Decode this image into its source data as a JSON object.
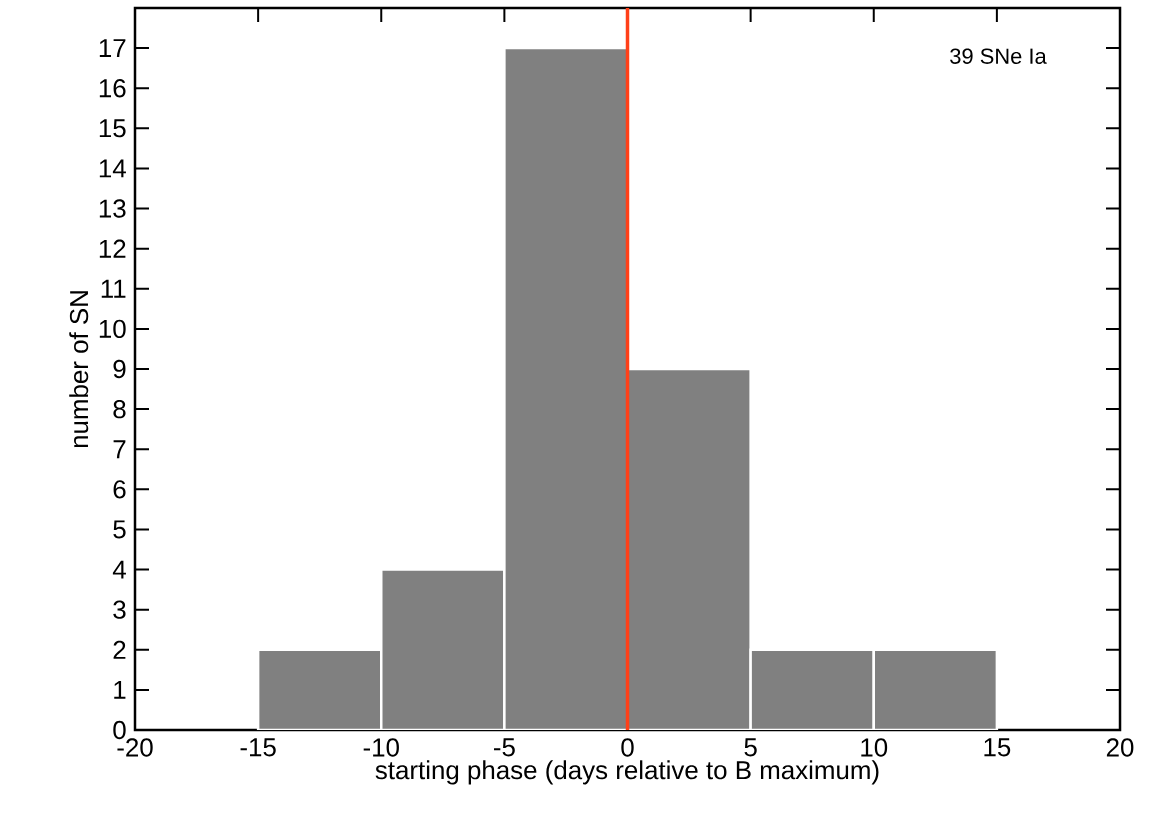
{
  "chart_data": {
    "type": "histogram",
    "xlabel": "starting phase (days relative to B maximum)",
    "ylabel": "number of SN",
    "bins": [
      -15,
      -10,
      -5,
      0,
      5,
      10,
      15
    ],
    "values": [
      2,
      4,
      17,
      9,
      2,
      2
    ],
    "color": "#808080",
    "xlim": [
      -20,
      20
    ],
    "xticks": [
      -20,
      -15,
      -10,
      -5,
      0,
      5,
      10,
      15,
      20
    ],
    "ylim": [
      0,
      18
    ],
    "yticks": [
      0,
      1,
      2,
      3,
      4,
      5,
      6,
      7,
      8,
      9,
      10,
      11,
      12,
      13,
      14,
      15,
      16,
      17
    ],
    "ref_lines": [
      {
        "axis": "x",
        "value": 0,
        "color": "#ff4019"
      }
    ],
    "annotations": [
      "39 SNe Ia"
    ],
    "grid": false
  }
}
